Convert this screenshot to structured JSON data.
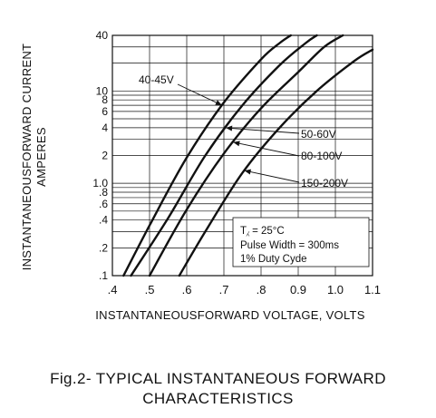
{
  "figure_caption": {
    "line1": "Fig.2- TYPICAL INSTANTANEOUS FORWARD",
    "line2": "CHARACTERISTICS"
  },
  "conditions": {
    "tj": "T⁁ = 25°C",
    "pulse": "Pulse Width = 300ms",
    "duty": "1% Duty Cyde"
  },
  "chart_data": {
    "type": "line",
    "title": "Fig.2- TYPICAL INSTANTANEOUS FORWARD CHARACTERISTICS",
    "xlabel": "INSTANTANEOUSFORWARD VOLTAGE, VOLTS",
    "ylabel_line1": "INSTANTANEOUSFORWARD CURRENT",
    "ylabel_line2": "AMPERES",
    "x_scale": "linear",
    "y_scale": "log",
    "xlim": [
      0.4,
      1.1
    ],
    "ylim": [
      0.1,
      40
    ],
    "grid": true,
    "x_ticks": [
      0.4,
      0.5,
      0.6,
      0.7,
      0.8,
      0.9,
      1.0,
      1.1
    ],
    "x_tick_labels": [
      ".4",
      ".5",
      ".6",
      ".7",
      ".8",
      "0.9",
      "1.0",
      "1.1"
    ],
    "y_ticks": [
      0.1,
      0.2,
      0.4,
      0.6,
      0.8,
      1.0,
      2,
      4,
      6,
      8,
      10,
      40
    ],
    "y_tick_labels": [
      ".1",
      ".2",
      ".4",
      ".6",
      ".8",
      "1.0",
      "2",
      "4",
      "6",
      "8",
      "10",
      "40"
    ],
    "series": [
      {
        "name": "40-45V",
        "label_pos": "left",
        "x": [
          0.43,
          0.5,
          0.6,
          0.7,
          0.8,
          0.85,
          0.88
        ],
        "y": [
          0.1,
          0.35,
          1.9,
          7.5,
          22,
          33,
          40
        ]
      },
      {
        "name": "50-60V",
        "label_pos": "right",
        "x": [
          0.45,
          0.55,
          0.65,
          0.75,
          0.85,
          0.92,
          0.95
        ],
        "y": [
          0.1,
          0.42,
          2.0,
          7.0,
          19,
          33,
          40
        ]
      },
      {
        "name": "80-100V",
        "label_pos": "right",
        "x": [
          0.5,
          0.6,
          0.7,
          0.8,
          0.9,
          0.97,
          1.02
        ],
        "y": [
          0.1,
          0.52,
          2.1,
          6.5,
          16,
          30,
          40
        ]
      },
      {
        "name": "150-200V",
        "label_pos": "right",
        "x": [
          0.58,
          0.65,
          0.75,
          0.85,
          0.95,
          1.05,
          1.1
        ],
        "y": [
          0.1,
          0.3,
          1.3,
          4.0,
          10,
          21,
          28
        ]
      }
    ]
  }
}
